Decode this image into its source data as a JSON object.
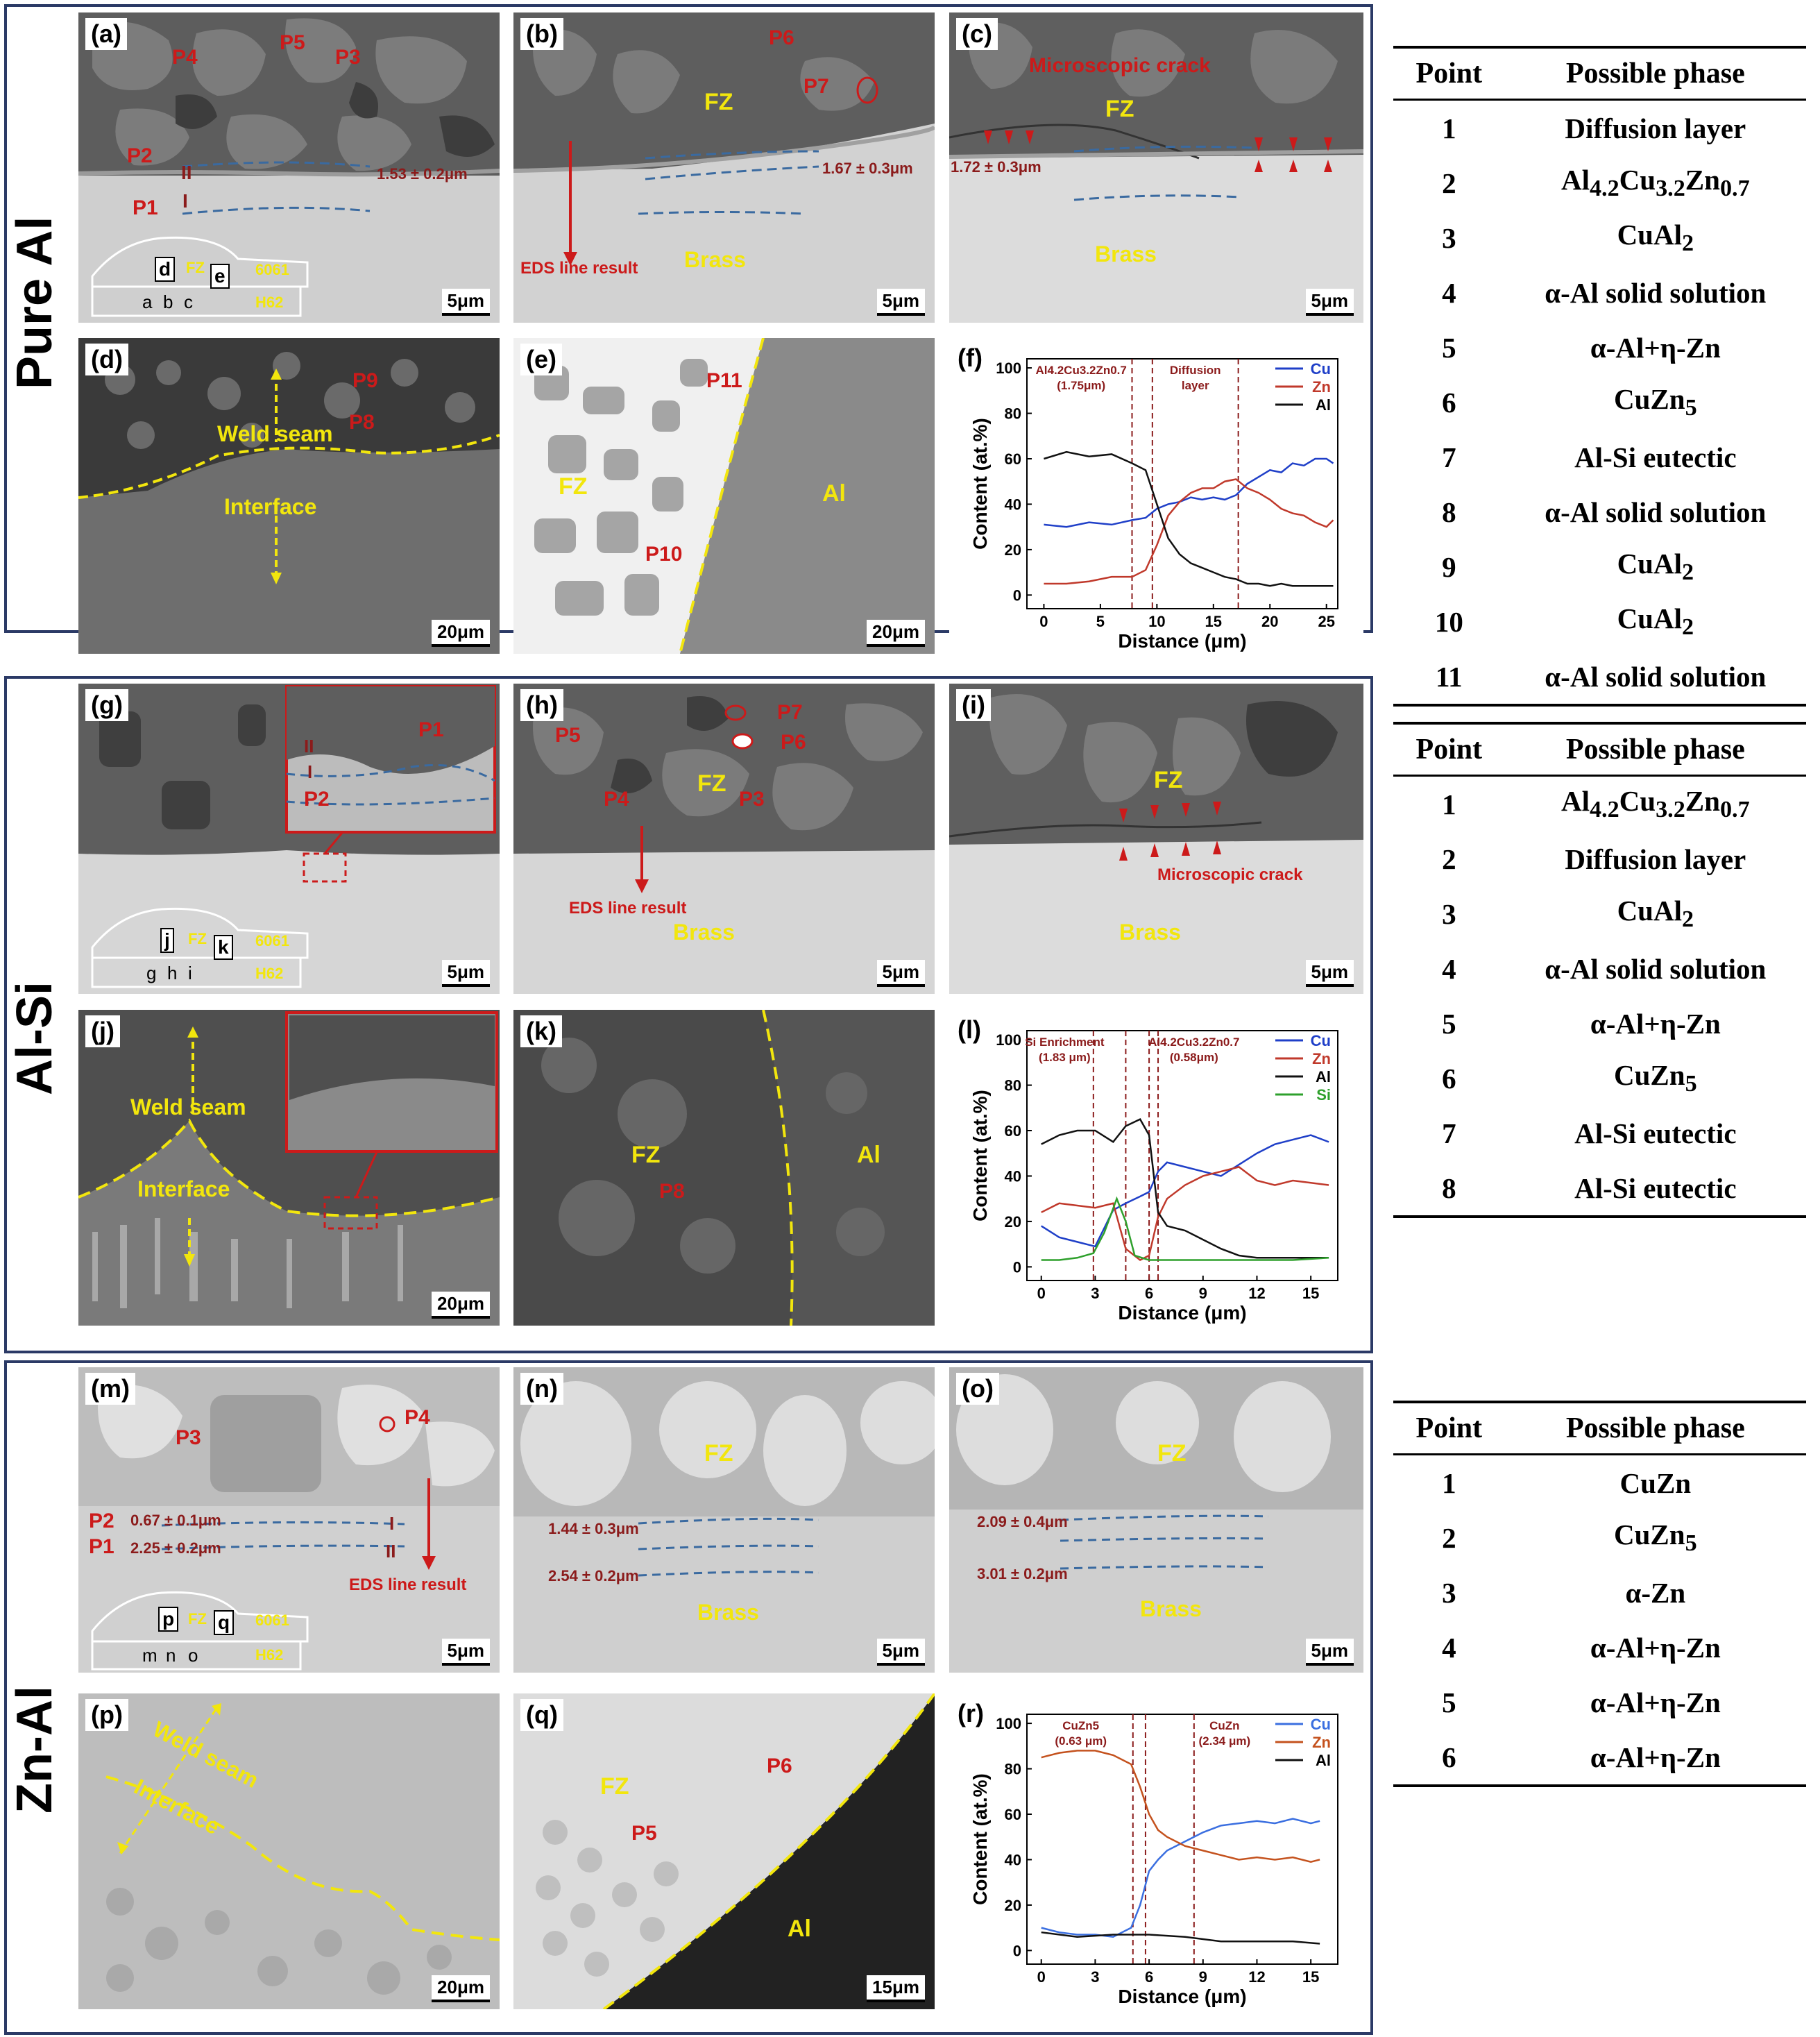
{
  "rows": {
    "pure_al": "Pure Al",
    "al_si": "Al-Si",
    "zn_al": "Zn-Al"
  },
  "panels": {
    "a": {
      "label": "(a)",
      "scale": "5μm",
      "points": [
        "P4",
        "P5",
        "P3",
        "P2",
        "P1"
      ],
      "thickness": "1.53 ± 0.2μm",
      "marks": [
        "II",
        "I"
      ],
      "schematic": {
        "boxes": [
          "d",
          "e"
        ],
        "small": [
          "a",
          "b",
          "c"
        ],
        "fz": "FZ",
        "top": "6061",
        "bottom": "H62"
      }
    },
    "b": {
      "label": "(b)",
      "scale": "5μm",
      "points": [
        "P6",
        "P7"
      ],
      "fz": "FZ",
      "thickness": "1.67 ± 0.3μm",
      "eds": "EDS line result",
      "brass": "Brass"
    },
    "c": {
      "label": "(c)",
      "scale": "5μm",
      "crack": "Microscopic crack",
      "fz": "FZ",
      "thickness": "1.72 ± 0.3μm",
      "brass": "Brass"
    },
    "d": {
      "label": "(d)",
      "scale": "20μm",
      "points": [
        "P9",
        "P8"
      ],
      "weld": "Weld seam",
      "interface": "Interface"
    },
    "e": {
      "label": "(e)",
      "scale": "20μm",
      "points": [
        "P11",
        "P10"
      ],
      "fz": "FZ",
      "al": "Al"
    },
    "f": {
      "label": "(f)"
    },
    "g": {
      "label": "(g)",
      "scale": "5μm",
      "points": [
        "P1",
        "P2"
      ],
      "marks": [
        "II",
        "I"
      ],
      "schematic": {
        "boxes": [
          "j",
          "k"
        ],
        "small": [
          "g",
          "h",
          "i"
        ],
        "fz": "FZ",
        "top": "6061",
        "bottom": "H62"
      }
    },
    "h": {
      "label": "(h)",
      "scale": "5μm",
      "points": [
        "P5",
        "P4",
        "P7",
        "P6",
        "P3"
      ],
      "fz": "FZ",
      "eds": "EDS line result",
      "brass": "Brass"
    },
    "i": {
      "label": "(i)",
      "scale": "5μm",
      "fz": "FZ",
      "crack": "Microscopic crack",
      "brass": "Brass"
    },
    "j": {
      "label": "(j)",
      "scale": "20μm",
      "weld": "Weld seam",
      "interface": "Interface"
    },
    "k": {
      "label": "(k)",
      "fz": "FZ",
      "point": "P8",
      "al": "Al"
    },
    "l": {
      "label": "(l)"
    },
    "m": {
      "label": "(m)",
      "scale": "5μm",
      "points": [
        "P3",
        "P4",
        "P2",
        "P1"
      ],
      "t1": "0.67 ± 0.1μm",
      "t2": "2.25 ± 0.2μm",
      "marks": [
        "I",
        "II"
      ],
      "eds": "EDS line result",
      "schematic": {
        "boxes": [
          "p",
          "q"
        ],
        "small": [
          "m",
          "n",
          "o"
        ],
        "fz": "FZ",
        "top": "6061",
        "bottom": "H62"
      }
    },
    "n": {
      "label": "(n)",
      "scale": "5μm",
      "fz": "FZ",
      "t1": "1.44 ± 0.3μm",
      "t2": "2.54 ± 0.2μm",
      "brass": "Brass"
    },
    "o": {
      "label": "(o)",
      "scale": "5μm",
      "fz": "FZ",
      "t1": "2.09 ± 0.4μm",
      "t2": "3.01 ± 0.2μm",
      "brass": "Brass"
    },
    "p": {
      "label": "(p)",
      "scale": "20μm",
      "weld": "Weld seam",
      "interface": "Interface"
    },
    "q": {
      "label": "(q)",
      "scale": "15μm",
      "fz": "FZ",
      "points": [
        "P6",
        "P5"
      ],
      "al": "Al"
    },
    "r": {
      "label": "(r)"
    }
  },
  "chart_data": [
    {
      "id": "f",
      "type": "line",
      "xlabel": "Distance (μm)",
      "ylabel": "Content (at.%)",
      "xlim": [
        -1.5,
        26
      ],
      "ylim": [
        -6,
        104
      ],
      "xticks": [
        0,
        5,
        10,
        15,
        20,
        25
      ],
      "yticks": [
        0,
        20,
        40,
        60,
        80,
        100
      ],
      "vlines": [
        7.8,
        9.6,
        17.2
      ],
      "annotations": [
        {
          "lines": [
            "Al4.2Cu3.2Zn0.7",
            "(1.75μm)"
          ],
          "x": 3.3
        },
        {
          "lines": [
            "Diffusion",
            "layer"
          ],
          "x": 13.4
        }
      ],
      "series": [
        {
          "name": "Cu",
          "color": "#1f3fc8",
          "x": [
            0,
            2,
            4,
            6,
            7.8,
            9,
            10,
            11,
            12,
            13,
            14,
            15,
            16,
            17,
            18,
            19,
            20,
            21,
            22,
            23,
            24,
            25,
            25.6
          ],
          "values": [
            31,
            30,
            32,
            31,
            33,
            34,
            38,
            40,
            41,
            43,
            42,
            43,
            42,
            44,
            49,
            52,
            55,
            54,
            58,
            57,
            60,
            60,
            58
          ]
        },
        {
          "name": "Zn",
          "color": "#c0392b",
          "x": [
            0,
            2,
            4,
            6,
            7.8,
            9,
            10,
            11,
            12,
            13,
            14,
            15,
            16,
            17,
            18,
            19,
            20,
            21,
            22,
            23,
            24,
            25,
            25.6
          ],
          "values": [
            5,
            5,
            6,
            8,
            8,
            11,
            22,
            35,
            41,
            45,
            47,
            47,
            50,
            51,
            47,
            45,
            42,
            38,
            36,
            35,
            32,
            30,
            33
          ]
        },
        {
          "name": "Al",
          "color": "#111111",
          "x": [
            0,
            2,
            4,
            6,
            7.8,
            9,
            10,
            11,
            12,
            13,
            14,
            15,
            16,
            17,
            18,
            19,
            20,
            21,
            22,
            23,
            24,
            25,
            25.6
          ],
          "values": [
            60,
            63,
            61,
            62,
            58,
            55,
            40,
            25,
            18,
            14,
            12,
            10,
            8,
            7,
            5,
            5,
            4,
            5,
            4,
            4,
            4,
            4,
            4
          ]
        }
      ]
    },
    {
      "id": "l",
      "type": "line",
      "xlabel": "Distance (μm)",
      "ylabel": "Content (at.%)",
      "xlim": [
        -0.8,
        16.5
      ],
      "ylim": [
        -6,
        104
      ],
      "xticks": [
        0,
        3,
        6,
        9,
        12,
        15
      ],
      "yticks": [
        0,
        20,
        40,
        60,
        80,
        100
      ],
      "vlines": [
        2.9,
        4.7,
        6.0,
        6.5
      ],
      "annotations": [
        {
          "lines": [
            "Si Enrichment",
            "(1.83 μm)"
          ],
          "x": 1.3
        },
        {
          "lines": [
            "Al4.2Cu3.2Zn0.7",
            "(0.58μm)"
          ],
          "x": 8.5
        }
      ],
      "series": [
        {
          "name": "Cu",
          "color": "#1f3fc8",
          "x": [
            0,
            1,
            2,
            3,
            4,
            4.7,
            5.5,
            6,
            6.5,
            7,
            8,
            9,
            10,
            11,
            12,
            13,
            14,
            15,
            16
          ],
          "values": [
            18,
            13,
            11,
            9,
            25,
            28,
            31,
            33,
            42,
            46,
            44,
            42,
            40,
            45,
            50,
            54,
            56,
            58,
            55
          ]
        },
        {
          "name": "Zn",
          "color": "#c0392b",
          "x": [
            0,
            1,
            2,
            3,
            4,
            4.7,
            5.5,
            6,
            6.5,
            7,
            8,
            9,
            10,
            11,
            12,
            13,
            14,
            15,
            16
          ],
          "values": [
            24,
            28,
            27,
            26,
            28,
            8,
            3,
            5,
            22,
            30,
            36,
            40,
            42,
            44,
            38,
            36,
            38,
            37,
            36
          ]
        },
        {
          "name": "Al",
          "color": "#111111",
          "x": [
            0,
            1,
            2,
            3,
            4,
            4.7,
            5.5,
            6,
            6.5,
            7,
            8,
            9,
            10,
            11,
            12,
            13,
            14,
            15,
            16
          ],
          "values": [
            54,
            58,
            60,
            60,
            55,
            62,
            65,
            58,
            24,
            18,
            16,
            12,
            8,
            5,
            4,
            4,
            4,
            4,
            4
          ]
        },
        {
          "name": "Si",
          "color": "#2ea02c",
          "x": [
            0,
            1,
            2,
            2.9,
            3.5,
            4.2,
            4.7,
            5.2,
            6,
            7,
            8,
            10,
            12,
            14,
            16
          ],
          "values": [
            3,
            3,
            4,
            6,
            15,
            30,
            20,
            5,
            3,
            3,
            3,
            3,
            3,
            3,
            4
          ]
        }
      ]
    },
    {
      "id": "r",
      "type": "line",
      "xlabel": "Distance (μm)",
      "ylabel": "Content (at.%)",
      "xlim": [
        -0.8,
        16.5
      ],
      "ylim": [
        -6,
        104
      ],
      "xticks": [
        0,
        3,
        6,
        9,
        12,
        15
      ],
      "yticks": [
        0,
        20,
        40,
        60,
        80,
        100
      ],
      "vlines": [
        5.1,
        5.8,
        8.5
      ],
      "annotations": [
        {
          "lines": [
            "CuZn5",
            "(0.63 μm)"
          ],
          "x": 2.2
        },
        {
          "lines": [
            "CuZn",
            "(2.34 μm)"
          ],
          "x": 10.2
        }
      ],
      "series": [
        {
          "name": "Cu",
          "color": "#3b6fe0",
          "x": [
            0,
            1,
            2,
            3,
            4,
            5,
            5.5,
            6,
            6.5,
            7,
            8,
            9,
            10,
            11,
            12,
            13,
            14,
            15,
            15.5
          ],
          "values": [
            10,
            8,
            7,
            7,
            6,
            10,
            20,
            35,
            40,
            44,
            48,
            52,
            55,
            56,
            57,
            56,
            58,
            56,
            57
          ]
        },
        {
          "name": "Zn",
          "color": "#c4521e",
          "x": [
            0,
            1,
            2,
            3,
            4,
            5,
            5.5,
            6,
            6.5,
            7,
            8,
            9,
            10,
            11,
            12,
            13,
            14,
            15,
            15.5
          ],
          "values": [
            85,
            87,
            88,
            88,
            86,
            82,
            72,
            60,
            53,
            50,
            46,
            44,
            42,
            40,
            41,
            40,
            41,
            39,
            40
          ]
        },
        {
          "name": "Al",
          "color": "#111111",
          "x": [
            0,
            2,
            4,
            6,
            8,
            10,
            12,
            14,
            15.5
          ],
          "values": [
            8,
            6,
            7,
            7,
            6,
            4,
            4,
            4,
            3
          ]
        }
      ]
    }
  ],
  "tables": [
    {
      "headers": [
        "Point",
        "Possible phase"
      ],
      "rows": [
        [
          "1",
          "Diffusion layer"
        ],
        [
          "2",
          "Al4.2Cu3.2Zn0.7"
        ],
        [
          "3",
          "CuAl2"
        ],
        [
          "4",
          "α-Al solid solution"
        ],
        [
          "5",
          "α-Al+η-Zn"
        ],
        [
          "6",
          "CuZn5"
        ],
        [
          "7",
          "Al-Si eutectic"
        ],
        [
          "8",
          "α-Al solid solution"
        ],
        [
          "9",
          "CuAl2"
        ],
        [
          "10",
          "CuAl2"
        ],
        [
          "11",
          "α-Al solid solution"
        ]
      ]
    },
    {
      "headers": [
        "Point",
        "Possible phase"
      ],
      "rows": [
        [
          "1",
          "Al4.2Cu3.2Zn0.7"
        ],
        [
          "2",
          "Diffusion layer"
        ],
        [
          "3",
          "CuAl2"
        ],
        [
          "4",
          "α-Al solid solution"
        ],
        [
          "5",
          "α-Al+η-Zn"
        ],
        [
          "6",
          "CuZn5"
        ],
        [
          "7",
          "Al-Si eutectic"
        ],
        [
          "8",
          "Al-Si eutectic"
        ]
      ]
    },
    {
      "headers": [
        "Point",
        "Possible phase"
      ],
      "rows": [
        [
          "1",
          "CuZn"
        ],
        [
          "2",
          "CuZn5"
        ],
        [
          "3",
          "α-Zn"
        ],
        [
          "4",
          "α-Al+η-Zn"
        ],
        [
          "5",
          "α-Al+η-Zn"
        ],
        [
          "6",
          "α-Al+η-Zn"
        ]
      ]
    }
  ]
}
